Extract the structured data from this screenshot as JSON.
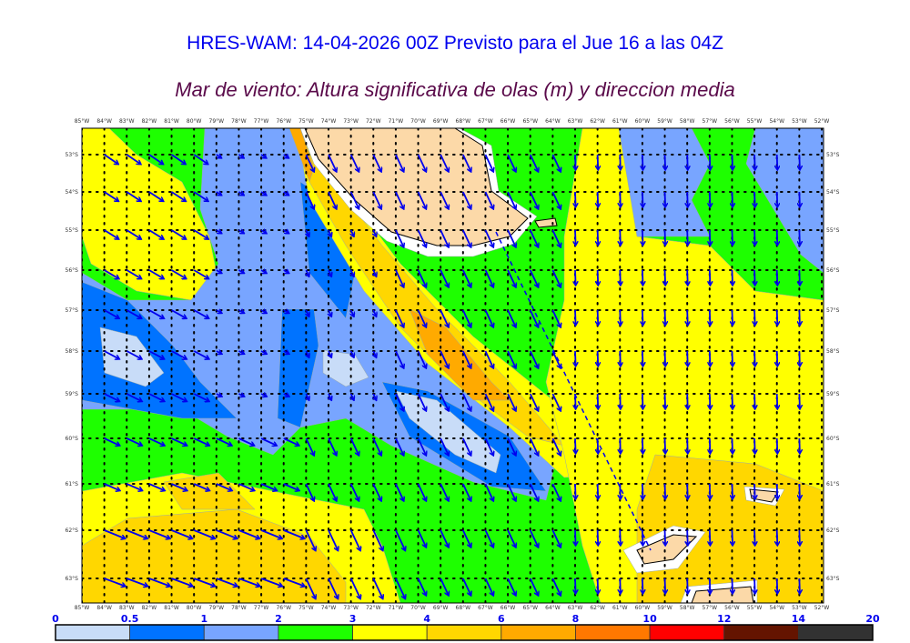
{
  "header": {
    "title": "HRES-WAM: 14-04-2026 00Z Previsto para el Jue 16 a las 04Z",
    "subtitle": "Mar de viento: Altura significativa de olas (m) y direccion media"
  },
  "map": {
    "lon_labels": [
      "85°W",
      "84°W",
      "83°W",
      "82°W",
      "81°W",
      "80°W",
      "79°W",
      "78°W",
      "77°W",
      "76°W",
      "75°W",
      "74°W",
      "73°W",
      "72°W",
      "71°W",
      "70°W",
      "69°W",
      "68°W",
      "67°W",
      "66°W",
      "65°W",
      "64°W",
      "63°W",
      "62°W",
      "61°W",
      "60°W",
      "59°W",
      "58°W",
      "57°W",
      "56°W",
      "55°W",
      "54°W",
      "53°W",
      "52°W"
    ],
    "lat_labels": [
      "53°S",
      "54°S",
      "55°S",
      "56°S",
      "57°S",
      "58°S",
      "59°S",
      "60°S",
      "61°S",
      "62°S",
      "63°S"
    ],
    "land_color": "#fcd9a8",
    "arrow_color": "#0000ee",
    "arrows": "mean wave direction arrows"
  },
  "colorbar": {
    "labels": [
      "0",
      "0.5",
      "1",
      "2",
      "3",
      "4",
      "6",
      "8",
      "10",
      "12",
      "14",
      "20"
    ],
    "colors": [
      "#c8dcf8",
      "#0073ff",
      "#78a5ff",
      "#1eff00",
      "#ffff00",
      "#ffd700",
      "#ffaa00",
      "#ff7800",
      "#ff0000",
      "#641400",
      "#323232"
    ]
  }
}
